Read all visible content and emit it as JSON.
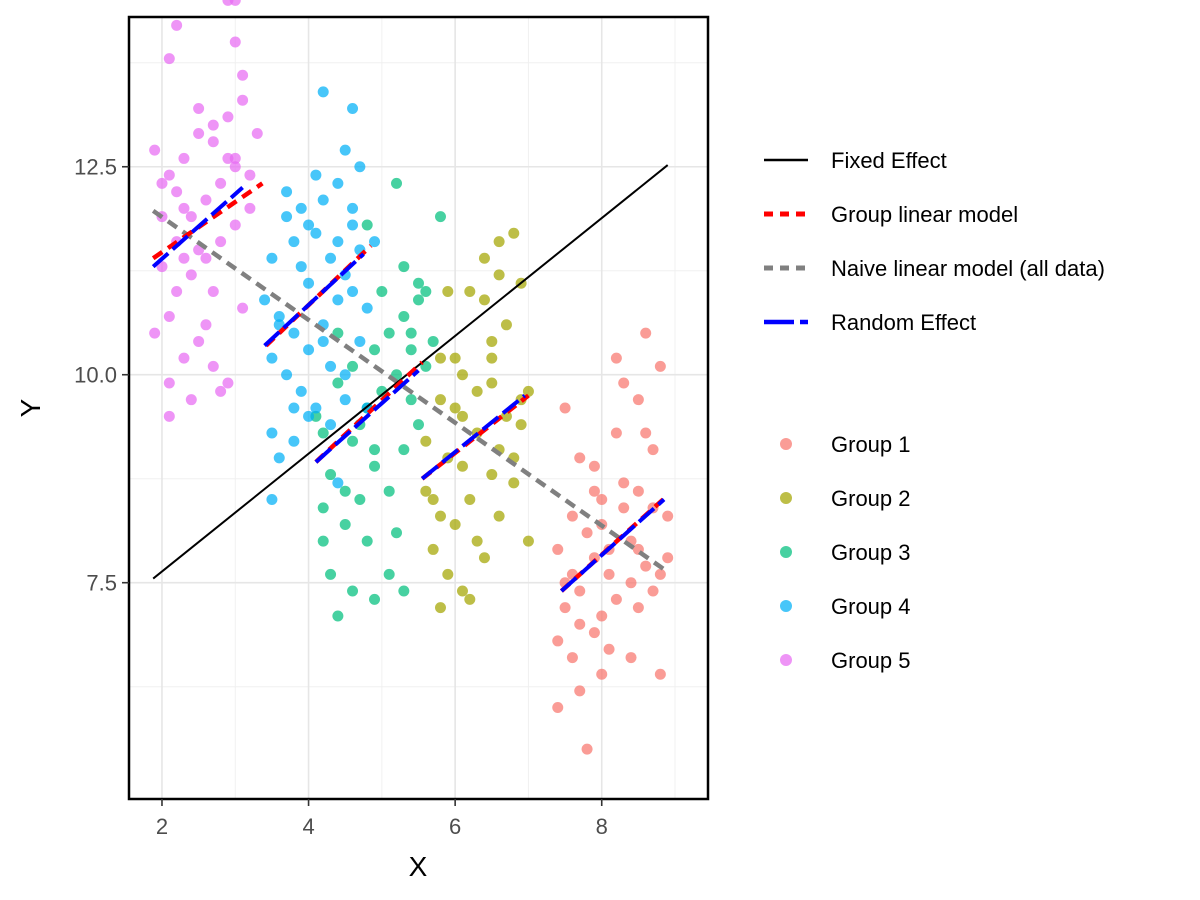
{
  "chart_data": {
    "type": "scatter",
    "title": "",
    "xlabel": "X",
    "ylabel": "Y",
    "xlim": [
      1.55,
      9.45
    ],
    "ylim": [
      4.9,
      14.3
    ],
    "x_ticks": [
      2,
      4,
      6,
      8
    ],
    "y_ticks": [
      7.5,
      10.0,
      12.5
    ],
    "x_tick_labels": [
      "2",
      "4",
      "6",
      "8"
    ],
    "y_tick_labels": [
      "7.5",
      "10.0",
      "12.5"
    ],
    "grid": true,
    "legend_position": "right",
    "series": [
      {
        "name": "Group 1",
        "color": "#F8766D",
        "points": [
          [
            7.5,
            9.6
          ],
          [
            7.7,
            9.0
          ],
          [
            7.9,
            8.9
          ],
          [
            8.2,
            10.2
          ],
          [
            8.6,
            10.5
          ],
          [
            8.8,
            10.1
          ],
          [
            8.5,
            9.7
          ],
          [
            7.6,
            8.3
          ],
          [
            7.8,
            8.1
          ],
          [
            8.0,
            8.5
          ],
          [
            8.3,
            8.7
          ],
          [
            8.5,
            8.6
          ],
          [
            8.7,
            8.4
          ],
          [
            8.9,
            8.3
          ],
          [
            7.4,
            7.9
          ],
          [
            7.6,
            7.6
          ],
          [
            7.9,
            7.8
          ],
          [
            8.1,
            7.9
          ],
          [
            8.4,
            8.0
          ],
          [
            8.6,
            7.7
          ],
          [
            8.8,
            7.6
          ],
          [
            7.5,
            7.2
          ],
          [
            7.7,
            7.0
          ],
          [
            8.0,
            7.1
          ],
          [
            8.2,
            7.3
          ],
          [
            8.5,
            7.2
          ],
          [
            8.7,
            7.4
          ],
          [
            7.4,
            6.8
          ],
          [
            7.6,
            6.6
          ],
          [
            7.9,
            6.9
          ],
          [
            8.1,
            6.7
          ],
          [
            8.4,
            6.6
          ],
          [
            8.8,
            6.4
          ],
          [
            7.4,
            6.0
          ],
          [
            7.7,
            6.2
          ],
          [
            8.0,
            6.4
          ],
          [
            7.8,
            5.5
          ],
          [
            8.2,
            9.3
          ],
          [
            8.7,
            9.1
          ],
          [
            8.3,
            9.9
          ],
          [
            8.0,
            8.2
          ],
          [
            8.3,
            8.4
          ],
          [
            7.7,
            7.4
          ],
          [
            8.5,
            7.9
          ],
          [
            8.9,
            7.8
          ],
          [
            7.5,
            7.5
          ],
          [
            8.1,
            7.6
          ],
          [
            8.6,
            9.3
          ],
          [
            7.9,
            8.6
          ],
          [
            8.4,
            7.5
          ]
        ]
      },
      {
        "name": "Group 2",
        "color": "#A3A500",
        "points": [
          [
            5.7,
            8.5
          ],
          [
            5.9,
            9.0
          ],
          [
            6.1,
            9.5
          ],
          [
            6.3,
            9.8
          ],
          [
            6.5,
            10.2
          ],
          [
            6.7,
            10.6
          ],
          [
            6.9,
            11.1
          ],
          [
            6.6,
            11.6
          ],
          [
            6.8,
            11.7
          ],
          [
            6.4,
            11.4
          ],
          [
            6.2,
            11.0
          ],
          [
            5.8,
            10.2
          ],
          [
            6.0,
            9.6
          ],
          [
            6.3,
            9.3
          ],
          [
            6.6,
            9.1
          ],
          [
            6.9,
            9.4
          ],
          [
            7.0,
            9.8
          ],
          [
            5.6,
            8.6
          ],
          [
            5.8,
            8.3
          ],
          [
            6.0,
            8.2
          ],
          [
            6.2,
            8.5
          ],
          [
            6.5,
            8.8
          ],
          [
            6.8,
            8.7
          ],
          [
            7.0,
            8.0
          ],
          [
            5.7,
            7.9
          ],
          [
            5.9,
            7.6
          ],
          [
            6.1,
            7.4
          ],
          [
            6.4,
            7.8
          ],
          [
            5.8,
            7.2
          ],
          [
            6.2,
            7.3
          ],
          [
            6.6,
            8.3
          ],
          [
            6.7,
            9.5
          ],
          [
            6.0,
            10.2
          ],
          [
            6.4,
            10.9
          ],
          [
            5.9,
            11.0
          ],
          [
            6.1,
            10.0
          ],
          [
            6.5,
            9.9
          ],
          [
            6.8,
            9.0
          ],
          [
            5.6,
            9.2
          ],
          [
            6.3,
            8.0
          ],
          [
            6.9,
            9.7
          ],
          [
            6.5,
            10.4
          ],
          [
            6.1,
            8.9
          ],
          [
            5.8,
            9.7
          ],
          [
            6.6,
            11.2
          ]
        ]
      },
      {
        "name": "Group 3",
        "color": "#00BF7D",
        "points": [
          [
            4.2,
            8.4
          ],
          [
            4.3,
            7.6
          ],
          [
            4.4,
            7.1
          ],
          [
            4.6,
            7.4
          ],
          [
            4.9,
            7.3
          ],
          [
            5.1,
            7.6
          ],
          [
            5.3,
            7.4
          ],
          [
            4.2,
            8.0
          ],
          [
            4.5,
            8.2
          ],
          [
            4.7,
            8.5
          ],
          [
            4.9,
            8.9
          ],
          [
            5.1,
            8.6
          ],
          [
            5.3,
            9.1
          ],
          [
            5.5,
            9.4
          ],
          [
            4.3,
            8.8
          ],
          [
            4.6,
            9.2
          ],
          [
            4.8,
            9.6
          ],
          [
            5.0,
            9.8
          ],
          [
            5.2,
            10.0
          ],
          [
            5.4,
            10.3
          ],
          [
            4.1,
            9.5
          ],
          [
            4.4,
            9.9
          ],
          [
            4.6,
            10.1
          ],
          [
            4.9,
            10.3
          ],
          [
            5.1,
            10.5
          ],
          [
            5.3,
            10.7
          ],
          [
            5.5,
            11.1
          ],
          [
            5.6,
            11.0
          ],
          [
            5.8,
            11.9
          ],
          [
            5.2,
            12.3
          ],
          [
            4.8,
            11.8
          ],
          [
            5.0,
            11.0
          ],
          [
            5.4,
            10.5
          ],
          [
            5.6,
            10.1
          ],
          [
            5.7,
            10.4
          ],
          [
            4.2,
            9.3
          ],
          [
            4.5,
            8.6
          ],
          [
            5.2,
            8.1
          ],
          [
            4.7,
            9.4
          ],
          [
            5.4,
            9.7
          ],
          [
            4.9,
            9.1
          ],
          [
            4.4,
            10.5
          ],
          [
            5.5,
            10.9
          ],
          [
            5.3,
            11.3
          ],
          [
            4.8,
            8.0
          ]
        ]
      },
      {
        "name": "Group 4",
        "color": "#00B0F6",
        "points": [
          [
            3.5,
            11.4
          ],
          [
            3.8,
            11.6
          ],
          [
            4.0,
            11.8
          ],
          [
            4.2,
            12.1
          ],
          [
            4.4,
            12.3
          ],
          [
            4.7,
            12.5
          ],
          [
            4.2,
            13.4
          ],
          [
            4.6,
            13.2
          ],
          [
            4.5,
            12.7
          ],
          [
            3.7,
            12.2
          ],
          [
            3.9,
            12.0
          ],
          [
            4.1,
            11.7
          ],
          [
            4.3,
            11.4
          ],
          [
            4.5,
            11.2
          ],
          [
            4.7,
            11.5
          ],
          [
            4.9,
            11.6
          ],
          [
            3.4,
            10.9
          ],
          [
            3.6,
            10.7
          ],
          [
            3.8,
            10.5
          ],
          [
            4.0,
            10.3
          ],
          [
            4.2,
            10.6
          ],
          [
            4.4,
            10.9
          ],
          [
            4.6,
            11.0
          ],
          [
            4.8,
            10.8
          ],
          [
            3.5,
            10.2
          ],
          [
            3.7,
            10.0
          ],
          [
            3.9,
            9.8
          ],
          [
            4.1,
            9.6
          ],
          [
            4.3,
            9.4
          ],
          [
            4.5,
            9.7
          ],
          [
            3.5,
            9.3
          ],
          [
            3.8,
            9.2
          ],
          [
            4.0,
            9.5
          ],
          [
            3.6,
            9.0
          ],
          [
            3.5,
            8.5
          ],
          [
            4.4,
            8.7
          ],
          [
            4.8,
            9.6
          ],
          [
            3.6,
            10.6
          ],
          [
            4.0,
            11.1
          ],
          [
            4.3,
            10.1
          ],
          [
            4.6,
            11.8
          ],
          [
            3.9,
            11.3
          ],
          [
            4.1,
            12.4
          ],
          [
            4.4,
            11.6
          ],
          [
            4.7,
            10.4
          ],
          [
            3.7,
            11.9
          ],
          [
            4.2,
            10.4
          ],
          [
            4.5,
            10.0
          ],
          [
            3.8,
            9.6
          ],
          [
            4.6,
            12.0
          ]
        ]
      },
      {
        "name": "Group 5",
        "color": "#E76BF3",
        "points": [
          [
            1.9,
            12.7
          ],
          [
            2.1,
            12.4
          ],
          [
            2.3,
            12.6
          ],
          [
            2.5,
            12.9
          ],
          [
            2.7,
            13.0
          ],
          [
            2.9,
            13.1
          ],
          [
            3.1,
            13.3
          ],
          [
            3.3,
            12.9
          ],
          [
            2.0,
            11.9
          ],
          [
            2.2,
            11.6
          ],
          [
            2.4,
            11.9
          ],
          [
            2.6,
            12.1
          ],
          [
            2.8,
            12.3
          ],
          [
            3.0,
            12.5
          ],
          [
            3.2,
            12.4
          ],
          [
            2.0,
            11.3
          ],
          [
            2.2,
            11.0
          ],
          [
            2.4,
            11.2
          ],
          [
            2.6,
            11.4
          ],
          [
            2.8,
            11.6
          ],
          [
            3.0,
            11.8
          ],
          [
            1.9,
            10.5
          ],
          [
            2.1,
            10.7
          ],
          [
            2.3,
            10.2
          ],
          [
            2.5,
            10.4
          ],
          [
            2.7,
            10.1
          ],
          [
            2.9,
            9.9
          ],
          [
            3.1,
            10.8
          ],
          [
            2.1,
            9.9
          ],
          [
            2.4,
            9.7
          ],
          [
            2.8,
            9.8
          ],
          [
            2.1,
            9.5
          ],
          [
            2.1,
            13.8
          ],
          [
            2.2,
            14.2
          ],
          [
            2.9,
            14.5
          ],
          [
            3.0,
            14.5
          ],
          [
            3.0,
            14.0
          ],
          [
            3.1,
            13.6
          ],
          [
            2.0,
            12.3
          ],
          [
            2.3,
            12.0
          ],
          [
            2.7,
            12.8
          ],
          [
            2.9,
            12.6
          ],
          [
            2.5,
            11.5
          ],
          [
            2.3,
            11.4
          ],
          [
            3.2,
            12.0
          ],
          [
            2.6,
            10.6
          ],
          [
            2.2,
            12.2
          ],
          [
            2.5,
            13.2
          ],
          [
            3.0,
            12.6
          ],
          [
            2.7,
            11.0
          ]
        ]
      }
    ],
    "lines": [
      {
        "name": "Fixed Effect",
        "style": "solid",
        "color": "#000000",
        "segments": [
          [
            [
              1.88,
              7.55
            ],
            [
              8.9,
              12.52
            ]
          ]
        ]
      },
      {
        "name": "Group linear model",
        "style": "dashed",
        "color": "#FF0000",
        "segments": [
          [
            [
              1.88,
              11.4
            ],
            [
              3.37,
              12.3
            ]
          ],
          [
            [
              3.42,
              10.35
            ],
            [
              4.85,
              11.55
            ]
          ],
          [
            [
              4.1,
              8.95
            ],
            [
              5.55,
              10.15
            ]
          ],
          [
            [
              5.55,
              8.75
            ],
            [
              7.0,
              9.75
            ]
          ],
          [
            [
              7.45,
              7.4
            ],
            [
              8.9,
              8.55
            ]
          ]
        ]
      },
      {
        "name": "Naive linear model (all data)",
        "style": "dashed",
        "color": "#808080",
        "segments": [
          [
            [
              1.88,
              11.97
            ],
            [
              8.9,
              7.63
            ]
          ]
        ]
      },
      {
        "name": "Random Effect",
        "style": "longdash",
        "color": "#0000FF",
        "segments": [
          [
            [
              1.88,
              11.3
            ],
            [
              3.1,
              12.25
            ]
          ],
          [
            [
              3.4,
              10.35
            ],
            [
              4.75,
              11.45
            ]
          ],
          [
            [
              4.1,
              8.95
            ],
            [
              5.5,
              10.05
            ]
          ],
          [
            [
              5.55,
              8.75
            ],
            [
              6.95,
              9.75
            ]
          ],
          [
            [
              7.45,
              7.4
            ],
            [
              8.85,
              8.5
            ]
          ]
        ]
      }
    ]
  }
}
